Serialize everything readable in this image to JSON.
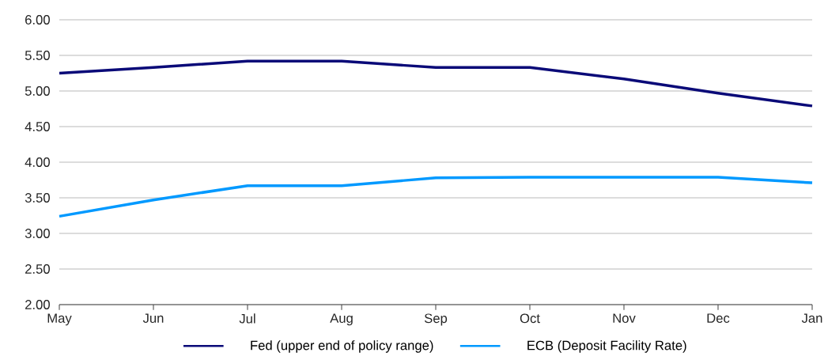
{
  "chart_data": {
    "type": "line",
    "categories": [
      "May",
      "Jun",
      "Jul",
      "Aug",
      "Sep",
      "Oct",
      "Nov",
      "Dec",
      "Jan"
    ],
    "series": [
      {
        "name": "Fed (upper end of policy range)",
        "color": "#0a0a78",
        "values": [
          5.25,
          5.33,
          5.42,
          5.42,
          5.33,
          5.33,
          5.17,
          4.97,
          4.79
        ]
      },
      {
        "name": "ECB (Deposit Facility Rate)",
        "color": "#0099ff",
        "values": [
          3.24,
          3.47,
          3.67,
          3.67,
          3.78,
          3.79,
          3.79,
          3.79,
          3.71
        ]
      }
    ],
    "ylim": [
      2.0,
      6.0
    ],
    "yticks": [
      {
        "value": 2.0,
        "label": "2.00"
      },
      {
        "value": 2.5,
        "label": "2.50"
      },
      {
        "value": 3.0,
        "label": "3.00"
      },
      {
        "value": 3.5,
        "label": "3.50"
      },
      {
        "value": 4.0,
        "label": "4.00"
      },
      {
        "value": 4.5,
        "label": "4.50"
      },
      {
        "value": 5.0,
        "label": "5.00"
      },
      {
        "value": 5.5,
        "label": "5.50"
      },
      {
        "value": 6.0,
        "label": "6.00"
      }
    ],
    "grid": "y",
    "legend": "bottom",
    "marker": "none",
    "line_style": "solid"
  }
}
